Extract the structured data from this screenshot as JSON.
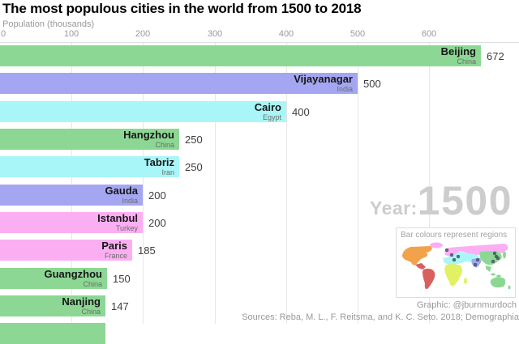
{
  "title": "The most populous cities in the world from 1500 to 2018",
  "axis": {
    "label": "Population (thousands)",
    "ticks": [
      0,
      100,
      200,
      300,
      400,
      500,
      600
    ]
  },
  "chart_data": {
    "type": "bar",
    "title": "The most populous cities in the world from 1500 to 2018",
    "xlabel": "Population (thousands)",
    "xlim": [
      0,
      725
    ],
    "grid": "vertical",
    "year": "1500",
    "bars": [
      {
        "city": "Beijing",
        "country": "China",
        "value": 672,
        "region": "east_asia"
      },
      {
        "city": "Vijayanagar",
        "country": "India",
        "value": 500,
        "region": "south_asia"
      },
      {
        "city": "Cairo",
        "country": "Egypt",
        "value": 400,
        "region": "middle_east_north_africa"
      },
      {
        "city": "Hangzhou",
        "country": "China",
        "value": 250,
        "region": "east_asia"
      },
      {
        "city": "Tabriz",
        "country": "Iran",
        "value": 250,
        "region": "middle_east_north_africa"
      },
      {
        "city": "Gauda",
        "country": "India",
        "value": 200,
        "region": "south_asia"
      },
      {
        "city": "Istanbul",
        "country": "Turkey",
        "value": 200,
        "region": "europe"
      },
      {
        "city": "Paris",
        "country": "France",
        "value": 185,
        "region": "europe"
      },
      {
        "city": "Guangzhou",
        "country": "China",
        "value": 150,
        "region": "east_asia"
      },
      {
        "city": "Nanjing",
        "country": "China",
        "value": 147,
        "region": "east_asia"
      }
    ],
    "partial_bar": {
      "region": "east_asia",
      "value": 147
    }
  },
  "region_colors": {
    "east_asia": "#8cd794",
    "south_asia": "#a5a6f2",
    "middle_east_north_africa": "#a9f6f8",
    "europe": "#fcaef3",
    "north_america": "#f2a24b",
    "latin_america": "#d9605f",
    "sub_saharan_africa": "#e2f163",
    "city_dot": "#4a5a6a"
  },
  "year_display": {
    "prefix": "Year:",
    "value": "1500"
  },
  "legend": {
    "caption": "Bar colours represent regions"
  },
  "credits": {
    "graphic": "Graphic: @jburnmurdoch",
    "sources": "Sources: Reba, M. L., F. Reitsma, and K. C. Seto. 2018; Demographia"
  }
}
